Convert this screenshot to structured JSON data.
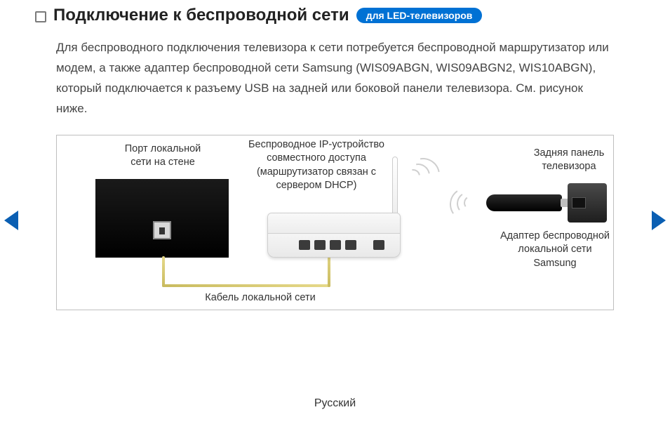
{
  "heading": "Подключение к беспроводной сети",
  "badge": "для LED-телевизоров",
  "body": "Для беспроводного подключения телевизора к сети потребуется беспроводной маршрутизатор или модем, а также адаптер беспроводной сети Samsung (WIS09ABGN, WIS09ABGN2, WIS10ABGN), который подключается к разъему USB на задней или боковой панели телевизора. См. рисунок ниже.",
  "diagram": {
    "wall_port_label": "Порт локальной\nсети на стене",
    "router_label": "Беспроводное IP-устройство\nсовместного доступа\n(маршрутизатор связан с\nсервером DHCP)",
    "tv_back_label": "Задняя панель\nтелевизора",
    "adapter_label": "Адаптер беспроводной\nлокальной сети\nSamsung",
    "cable_label": "Кабель локальной сети"
  },
  "footer": "Русский",
  "colors": {
    "badge_bg": "#0071d4",
    "arrow": "#0a5fb3",
    "border": "#bfbfbf",
    "text": "#333333"
  }
}
